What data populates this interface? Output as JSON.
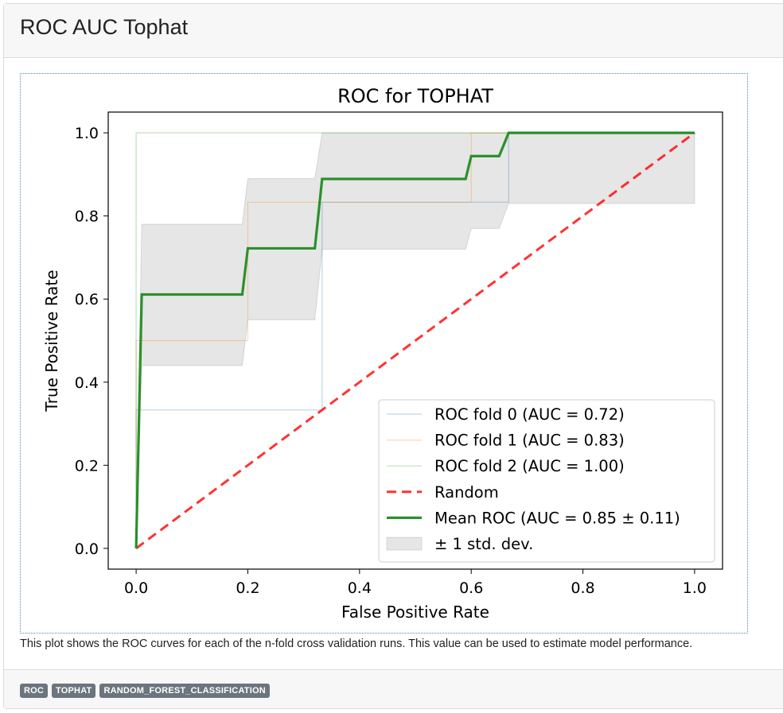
{
  "page": {
    "title": "ROC AUC Tophat",
    "caption": "This plot shows the ROC curves for each of the n-fold cross validation runs. This value can be used to estimate model performance.",
    "tags": [
      "ROC",
      "TOPHAT",
      "RANDOM_FOREST_CLASSIFICATION"
    ]
  },
  "chart_data": {
    "type": "line",
    "title": "ROC for TOPHAT",
    "xlabel": "False Positive Rate",
    "ylabel": "True Positive Rate",
    "xlim": [
      -0.05,
      1.05
    ],
    "ylim": [
      -0.05,
      1.05
    ],
    "xticks": [
      "0.0",
      "0.2",
      "0.4",
      "0.6",
      "0.8",
      "1.0"
    ],
    "yticks": [
      "0.0",
      "0.2",
      "0.4",
      "0.6",
      "0.8",
      "1.0"
    ],
    "legend_position": "lower-right",
    "series": [
      {
        "name": "ROC fold 0 (AUC = 0.72)",
        "color": "#1f77b4",
        "x": [
          0,
          0,
          0.333,
          0.333,
          0.667,
          0.667,
          1
        ],
        "y": [
          0,
          0.333,
          0.333,
          0.833,
          0.833,
          1,
          1
        ]
      },
      {
        "name": "ROC fold 1 (AUC = 0.83)",
        "color": "#ff7f0e",
        "x": [
          0,
          0,
          0.2,
          0.2,
          0.6,
          0.6,
          1
        ],
        "y": [
          0,
          0.5,
          0.5,
          0.833,
          0.833,
          1,
          1
        ]
      },
      {
        "name": "ROC fold 2 (AUC = 1.00)",
        "color": "#2ca02c",
        "x": [
          0,
          0,
          1
        ],
        "y": [
          0,
          1,
          1
        ]
      },
      {
        "name": "Random",
        "color": "#ff0000",
        "x": [
          0,
          1
        ],
        "y": [
          0,
          1
        ]
      },
      {
        "name": "Mean ROC (AUC = 0.85 ± 0.11)",
        "color": "#228b22",
        "x": [
          0,
          0.01,
          0.19,
          0.2,
          0.32,
          0.333,
          0.59,
          0.6,
          0.65,
          0.667,
          1
        ],
        "y": [
          0,
          0.611,
          0.611,
          0.722,
          0.722,
          0.889,
          0.889,
          0.944,
          0.944,
          1,
          1
        ]
      }
    ],
    "band": {
      "name": "± 1 std. dev.",
      "color": "#808080",
      "x": [
        0,
        0.01,
        0.19,
        0.2,
        0.32,
        0.333,
        0.59,
        0.6,
        0.65,
        0.667,
        1
      ],
      "upper": [
        0,
        0.78,
        0.78,
        0.89,
        0.89,
        1,
        1,
        1,
        1,
        1,
        1
      ],
      "lower": [
        0,
        0.44,
        0.44,
        0.55,
        0.55,
        0.72,
        0.72,
        0.77,
        0.77,
        0.83,
        0.83
      ]
    }
  }
}
